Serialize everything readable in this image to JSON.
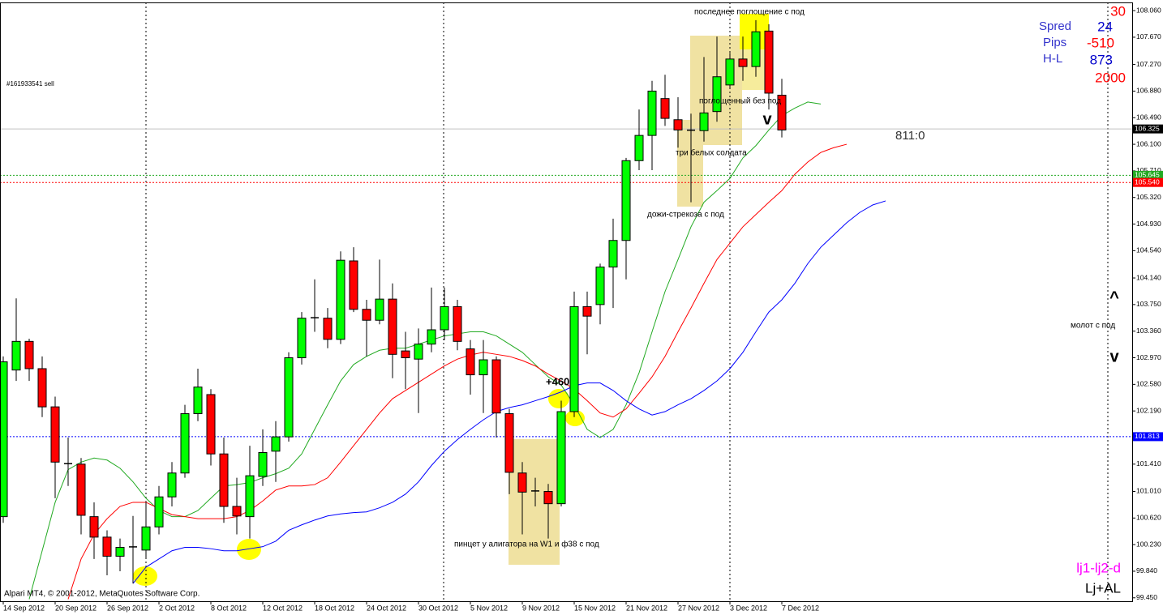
{
  "chart_data": {
    "type": "candlestick",
    "categories": [
      "14 Sep 2012",
      null,
      null,
      null,
      "20 Sep 2012",
      null,
      null,
      null,
      "26 Sep 2012",
      null,
      null,
      null,
      "2 Oct 2012",
      null,
      null,
      null,
      "8 Oct 2012",
      null,
      null,
      null,
      "12 Oct 2012",
      null,
      null,
      null,
      "18 Oct 2012",
      null,
      null,
      null,
      "24 Oct 2012",
      null,
      null,
      null,
      "30 Oct 2012",
      null,
      null,
      null,
      "5 Nov 2012",
      null,
      null,
      null,
      "9 Nov 2012",
      null,
      null,
      null,
      "15 Nov 2012",
      null,
      null,
      null,
      "21 Nov 2012",
      null,
      null,
      null,
      "27 Nov 2012",
      null,
      null,
      null,
      "3 Dec 2012",
      null,
      null,
      null,
      "7 Dec 2012",
      null,
      null,
      null,
      null,
      null,
      null,
      null,
      null
    ],
    "open": [
      100.64,
      102.79,
      103.21,
      102.81,
      102.25,
      101.42,
      101.41,
      100.64,
      100.34,
      100.06,
      100.19,
      100.15,
      100.49,
      100.93,
      101.28,
      102.15,
      102.43,
      101.56,
      100.79,
      100.64,
      101.23,
      101.6,
      101.81,
      102.97,
      103.55,
      103.55,
      103.24,
      104.39,
      103.68,
      103.52,
      103.83,
      103.07,
      102.95,
      103.17,
      103.38,
      103.72,
      103.1,
      102.72,
      102.94,
      102.15,
      101.28,
      101.02,
      101.01,
      100.83,
      102.18,
      103.72,
      103.75,
      104.3,
      104.69,
      105.86,
      106.23,
      106.77,
      106.46,
      106.31,
      106.3,
      106.58,
      106.97,
      107.35,
      107.24,
      107.76,
      106.82,
      null,
      null,
      null,
      null,
      null,
      null,
      null,
      null
    ],
    "high": [
      102.99,
      103.84,
      103.25,
      102.99,
      102.4,
      101.8,
      101.5,
      100.85,
      100.44,
      100.32,
      100.65,
      100.85,
      101.09,
      101.44,
      102.28,
      102.81,
      102.51,
      101.8,
      101.21,
      101.68,
      101.92,
      102.04,
      103.05,
      103.64,
      104.12,
      103.7,
      104.53,
      104.59,
      103.82,
      104.41,
      104.06,
      103.35,
      103.4,
      104.0,
      104.0,
      103.82,
      103.23,
      103.23,
      102.99,
      102.22,
      101.44,
      101.21,
      101.12,
      102.34,
      103.94,
      103.94,
      104.35,
      105.01,
      105.9,
      106.61,
      107.03,
      107.12,
      106.79,
      106.55,
      107.38,
      107.68,
      107.44,
      107.68,
      107.92,
      107.86,
      107.06,
      null,
      null,
      null,
      null,
      null,
      null,
      null,
      null
    ],
    "low": [
      100.55,
      102.63,
      102.63,
      102.1,
      100.91,
      101.09,
      100.38,
      100.02,
      99.78,
      99.84,
      99.66,
      100.02,
      100.38,
      100.79,
      101.21,
      102.04,
      101.39,
      100.55,
      100.38,
      100.32,
      101.09,
      101.15,
      101.74,
      102.87,
      103.35,
      103.11,
      103.17,
      103.64,
      102.99,
      103.46,
      102.67,
      102.51,
      102.16,
      103.05,
      103.23,
      103.08,
      102.43,
      102.16,
      101.8,
      100.97,
      100.38,
      100.79,
      100.32,
      100.79,
      102.1,
      103.02,
      103.46,
      103.7,
      104.12,
      105.72,
      105.72,
      106.37,
      106.05,
      105.25,
      106.14,
      106.43,
      106.91,
      107.03,
      107.09,
      106.61,
      106.2,
      null,
      null,
      null,
      null,
      null,
      null,
      null,
      null
    ],
    "close": [
      102.91,
      103.21,
      102.81,
      102.25,
      101.44,
      101.41,
      100.66,
      100.34,
      100.06,
      100.19,
      100.2,
      100.49,
      100.93,
      101.28,
      102.15,
      102.54,
      101.56,
      100.79,
      100.65,
      101.24,
      101.58,
      101.81,
      102.97,
      103.55,
      103.56,
      103.24,
      104.4,
      103.68,
      103.52,
      103.83,
      103.02,
      102.97,
      103.17,
      103.38,
      103.72,
      103.21,
      102.72,
      102.94,
      102.16,
      101.29,
      101.0,
      101.01,
      100.83,
      102.18,
      103.72,
      103.58,
      104.3,
      104.69,
      105.86,
      106.23,
      106.88,
      106.48,
      106.31,
      106.3,
      106.56,
      107.09,
      107.35,
      107.24,
      107.75,
      106.85,
      106.31,
      null,
      null,
      null,
      null,
      null,
      null,
      null,
      null
    ],
    "up_color": "#00ff00",
    "down_color": "#ff0000",
    "series": [
      {
        "color": "#22aa22",
        "values": [
          null,
          null,
          99.43,
          100.14,
          100.85,
          101.33,
          101.44,
          101.5,
          101.47,
          101.35,
          101.15,
          100.91,
          100.73,
          100.64,
          100.64,
          100.73,
          100.91,
          101.09,
          101.11,
          101.14,
          101.21,
          101.27,
          101.35,
          101.56,
          101.92,
          102.28,
          102.63,
          102.87,
          102.99,
          103.08,
          103.11,
          103.11,
          103.17,
          103.23,
          103.29,
          103.32,
          103.35,
          103.35,
          103.29,
          103.17,
          103.05,
          102.87,
          102.69,
          102.57,
          102.28,
          101.92,
          101.8,
          101.92,
          102.28,
          102.75,
          103.35,
          103.94,
          104.41,
          104.89,
          105.25,
          105.42,
          105.6,
          105.9,
          106.08,
          106.31,
          106.52,
          106.63,
          106.72,
          106.69,
          null,
          null,
          null,
          null,
          null
        ]
      },
      {
        "color": "#ff0000",
        "values": [
          null,
          null,
          null,
          null,
          null,
          99.43,
          100.02,
          100.38,
          100.61,
          100.79,
          100.85,
          100.85,
          100.76,
          100.67,
          100.64,
          100.61,
          100.61,
          100.61,
          100.64,
          100.73,
          100.87,
          101.03,
          101.09,
          101.09,
          101.11,
          101.21,
          101.44,
          101.68,
          101.92,
          102.16,
          102.37,
          102.49,
          102.61,
          102.73,
          102.85,
          102.95,
          103.01,
          103.05,
          103.02,
          102.99,
          102.93,
          102.85,
          102.73,
          102.63,
          102.51,
          102.34,
          102.16,
          102.1,
          102.22,
          102.45,
          102.69,
          102.99,
          103.35,
          103.7,
          104.06,
          104.41,
          104.65,
          104.89,
          105.07,
          105.25,
          105.42,
          105.66,
          105.84,
          105.98,
          106.05,
          106.1,
          null,
          null,
          null
        ]
      },
      {
        "color": "#0000ff",
        "values": [
          null,
          null,
          null,
          null,
          null,
          null,
          null,
          null,
          null,
          null,
          99.66,
          99.9,
          100.02,
          100.14,
          100.19,
          100.19,
          100.17,
          100.14,
          100.14,
          100.17,
          100.2,
          100.28,
          100.44,
          100.52,
          100.59,
          100.65,
          100.68,
          100.7,
          100.71,
          100.77,
          100.85,
          100.97,
          101.15,
          101.39,
          101.6,
          101.77,
          101.92,
          102.06,
          102.18,
          102.24,
          102.28,
          102.34,
          102.4,
          102.47,
          102.56,
          102.6,
          102.6,
          102.49,
          102.34,
          102.22,
          102.13,
          102.18,
          102.28,
          102.37,
          102.49,
          102.63,
          102.81,
          103.05,
          103.35,
          103.64,
          103.82,
          104.06,
          104.35,
          104.59,
          104.77,
          104.95,
          105.1,
          105.21,
          105.27
        ]
      }
    ],
    "ylim": [
      99.4,
      108.18
    ],
    "yticks": [
      {
        "value": 108.06,
        "label": "108.060"
      },
      {
        "value": 107.67,
        "label": "107.670"
      },
      {
        "value": 107.27,
        "label": "107.270"
      },
      {
        "value": 106.88,
        "label": "106.880"
      },
      {
        "value": 106.49,
        "label": "106.490"
      },
      {
        "value": 106.1,
        "label": "106.100"
      },
      {
        "value": 105.71,
        "label": "105.710"
      },
      {
        "value": 105.32,
        "label": "105.320"
      },
      {
        "value": 104.93,
        "label": "104.930"
      },
      {
        "value": 104.54,
        "label": "104.540"
      },
      {
        "value": 104.14,
        "label": "104.140"
      },
      {
        "value": 103.75,
        "label": "103.750"
      },
      {
        "value": 103.36,
        "label": "103.360"
      },
      {
        "value": 102.97,
        "label": "102.970"
      },
      {
        "value": 102.58,
        "label": "102.580"
      },
      {
        "value": 102.19,
        "label": "102.190"
      },
      {
        "value": 101.41,
        "label": "101.410"
      },
      {
        "value": 101.01,
        "label": "101.010"
      },
      {
        "value": 100.62,
        "label": "100.620"
      },
      {
        "value": 100.23,
        "label": "100.230"
      },
      {
        "value": 99.84,
        "label": "99.840"
      },
      {
        "value": 99.45,
        "label": "99.450"
      }
    ],
    "price_lines": [
      {
        "value": 106.325,
        "label": "106.325",
        "line_color": "#c0c0c0",
        "label_color": "#000000",
        "style": "solid"
      },
      {
        "value": 105.645,
        "label": "105.645",
        "line_color": "#22aa22",
        "label_color": "#22aa22",
        "style": "dotted"
      },
      {
        "value": 105.54,
        "label": "105.540",
        "line_color": "#ff0000",
        "label_color": "#ff0000",
        "style": "dotted"
      },
      {
        "value": 101.813,
        "label": "101.813",
        "line_color": "#0000ff",
        "label_color": "#0000ff",
        "style": "dotted"
      }
    ],
    "annotations": [
      "последнее поглощение с под",
      "поглощенный без под",
      "три белых солдата",
      "дожи-стрекоза с под",
      "пинцет у алигатора на W1 и ф38 с под",
      "молот с под",
      "+460"
    ],
    "markers": [
      "v",
      "^",
      "v"
    ],
    "order_label": "#161933541 sell",
    "ratio": "811:0",
    "copyright": "Alpari MT4, © 2001-2012, MetaQuotes Software Corp."
  },
  "info_panel": {
    "top": 30,
    "spread_label": "Spred",
    "spread": 24,
    "pips_label": "Pips",
    "pips": -510,
    "hl_label": "H-L",
    "hl": 873,
    "bottom": 2000
  },
  "indicators": [
    "lj1-lj2-d",
    "Lj+AL"
  ]
}
